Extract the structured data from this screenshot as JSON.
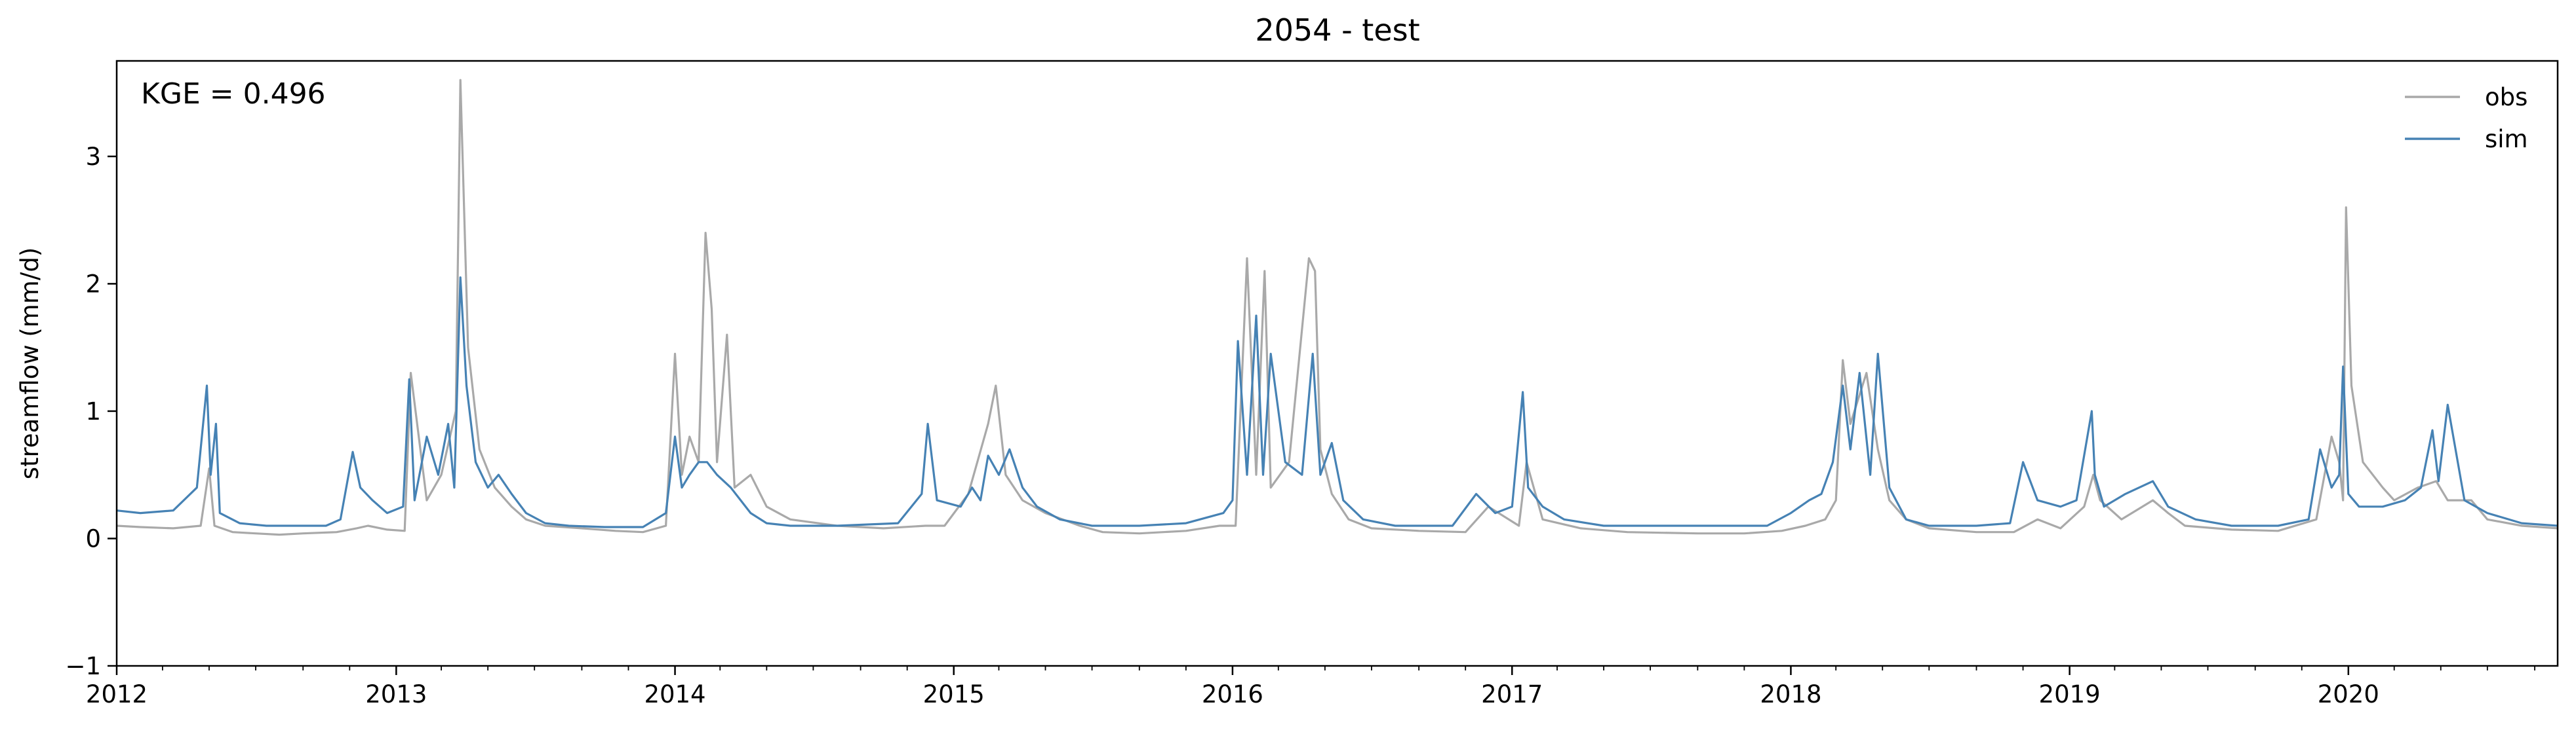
{
  "chart_data": {
    "type": "line",
    "title": "2054 - test",
    "xlabel": "",
    "ylabel": "streamflow (mm/d)",
    "annotation": "KGE = 0.496",
    "xlim": [
      "2012-01-01",
      "2020-10-01"
    ],
    "ylim": [
      -1,
      3.75
    ],
    "x_ticks": [
      "2012",
      "2013",
      "2014",
      "2015",
      "2016",
      "2017",
      "2018",
      "2019",
      "2020"
    ],
    "y_ticks": [
      "−1",
      "0",
      "1",
      "2",
      "3"
    ],
    "grid": false,
    "legend_position": "top-right",
    "series": [
      {
        "name": "obs",
        "color": "#a9a9a9",
        "x": [
          "2012-01-01",
          "2012-02-01",
          "2012-03-15",
          "2012-04-20",
          "2012-05-01",
          "2012-05-08",
          "2012-06-01",
          "2012-07-01",
          "2012-08-01",
          "2012-09-01",
          "2012-10-15",
          "2012-11-10",
          "2012-11-25",
          "2012-12-20",
          "2013-01-12",
          "2013-01-20",
          "2013-02-10",
          "2013-03-01",
          "2013-03-20",
          "2013-03-26",
          "2013-04-05",
          "2013-04-20",
          "2013-05-10",
          "2013-06-01",
          "2013-06-20",
          "2013-07-15",
          "2013-09-01",
          "2013-10-15",
          "2013-11-20",
          "2013-12-20",
          "2014-01-01",
          "2014-01-10",
          "2014-01-20",
          "2014-02-01",
          "2014-02-10",
          "2014-02-18",
          "2014-02-25",
          "2014-03-10",
          "2014-03-20",
          "2014-04-10",
          "2014-05-01",
          "2014-06-01",
          "2014-08-01",
          "2014-10-01",
          "2014-11-25",
          "2014-12-20",
          "2015-01-20",
          "2015-02-15",
          "2015-02-25",
          "2015-03-10",
          "2015-04-01",
          "2015-05-01",
          "2015-06-15",
          "2015-07-15",
          "2015-09-01",
          "2015-11-01",
          "2015-12-15",
          "2016-01-05",
          "2016-01-20",
          "2016-02-01",
          "2016-02-12",
          "2016-02-20",
          "2016-03-15",
          "2016-04-10",
          "2016-04-18",
          "2016-04-25",
          "2016-05-10",
          "2016-06-01",
          "2016-07-01",
          "2016-09-01",
          "2016-11-01",
          "2016-12-01",
          "2017-01-10",
          "2017-01-20",
          "2017-02-10",
          "2017-04-01",
          "2017-06-01",
          "2017-09-01",
          "2017-11-01",
          "2017-12-20",
          "2018-01-20",
          "2018-02-15",
          "2018-03-01",
          "2018-03-10",
          "2018-03-20",
          "2018-04-10",
          "2018-04-25",
          "2018-05-10",
          "2018-06-01",
          "2018-07-01",
          "2018-09-01",
          "2018-10-20",
          "2018-11-20",
          "2018-12-20",
          "2019-01-20",
          "2019-02-01",
          "2019-02-10",
          "2019-03-10",
          "2019-04-20",
          "2019-05-10",
          "2019-06-01",
          "2019-08-01",
          "2019-10-01",
          "2019-11-20",
          "2019-12-10",
          "2019-12-20",
          "2019-12-25",
          "2019-12-29",
          "2020-01-05",
          "2020-01-20",
          "2020-02-15",
          "2020-03-01",
          "2020-04-01",
          "2020-04-25",
          "2020-05-10",
          "2020-06-10",
          "2020-07-01",
          "2020-08-15",
          "2020-10-01"
        ],
        "y": [
          0.1,
          0.09,
          0.08,
          0.1,
          0.55,
          0.1,
          0.05,
          0.04,
          0.03,
          0.04,
          0.05,
          0.08,
          0.1,
          0.07,
          0.06,
          1.3,
          0.3,
          0.5,
          1.0,
          3.6,
          1.5,
          0.7,
          0.4,
          0.25,
          0.15,
          0.1,
          0.08,
          0.06,
          0.05,
          0.1,
          1.45,
          0.5,
          0.8,
          0.6,
          2.4,
          1.8,
          0.6,
          1.6,
          0.4,
          0.5,
          0.25,
          0.15,
          0.1,
          0.08,
          0.1,
          0.1,
          0.35,
          0.9,
          1.2,
          0.5,
          0.3,
          0.2,
          0.1,
          0.05,
          0.04,
          0.06,
          0.1,
          0.1,
          2.2,
          0.5,
          2.1,
          0.4,
          0.6,
          2.2,
          2.1,
          0.7,
          0.35,
          0.15,
          0.08,
          0.06,
          0.05,
          0.25,
          0.1,
          0.6,
          0.15,
          0.08,
          0.05,
          0.04,
          0.04,
          0.06,
          0.1,
          0.15,
          0.3,
          1.4,
          0.9,
          1.3,
          0.7,
          0.3,
          0.15,
          0.08,
          0.05,
          0.05,
          0.15,
          0.08,
          0.25,
          0.5,
          0.3,
          0.15,
          0.3,
          0.2,
          0.1,
          0.07,
          0.06,
          0.15,
          0.8,
          0.6,
          0.3,
          2.6,
          1.2,
          0.6,
          0.4,
          0.3,
          0.4,
          0.45,
          0.3,
          0.3,
          0.15,
          0.1,
          0.08
        ]
      },
      {
        "name": "sim",
        "color": "#4682b4",
        "x": [
          "2012-01-01",
          "2012-02-01",
          "2012-03-15",
          "2012-04-15",
          "2012-04-28",
          "2012-05-03",
          "2012-05-10",
          "2012-05-15",
          "2012-06-10",
          "2012-07-15",
          "2012-08-20",
          "2012-10-01",
          "2012-10-20",
          "2012-11-05",
          "2012-11-15",
          "2012-12-01",
          "2012-12-20",
          "2013-01-10",
          "2013-01-18",
          "2013-01-25",
          "2013-02-10",
          "2013-02-25",
          "2013-03-10",
          "2013-03-18",
          "2013-03-26",
          "2013-04-03",
          "2013-04-15",
          "2013-05-01",
          "2013-05-15",
          "2013-06-01",
          "2013-06-20",
          "2013-07-15",
          "2013-08-15",
          "2013-10-01",
          "2013-11-20",
          "2013-12-20",
          "2014-01-01",
          "2014-01-10",
          "2014-01-20",
          "2014-02-01",
          "2014-02-12",
          "2014-02-25",
          "2014-03-15",
          "2014-04-10",
          "2014-05-01",
          "2014-06-01",
          "2014-08-01",
          "2014-10-20",
          "2014-11-20",
          "2014-11-28",
          "2014-12-10",
          "2015-01-10",
          "2015-01-25",
          "2015-02-05",
          "2015-02-15",
          "2015-03-01",
          "2015-03-15",
          "2015-04-01",
          "2015-04-20",
          "2015-05-20",
          "2015-07-01",
          "2015-09-01",
          "2015-11-01",
          "2015-12-20",
          "2016-01-01",
          "2016-01-08",
          "2016-01-20",
          "2016-02-01",
          "2016-02-10",
          "2016-02-20",
          "2016-03-10",
          "2016-04-01",
          "2016-04-15",
          "2016-04-25",
          "2016-05-10",
          "2016-05-25",
          "2016-06-20",
          "2016-08-01",
          "2016-10-15",
          "2016-11-15",
          "2016-12-10",
          "2017-01-01",
          "2017-01-15",
          "2017-01-22",
          "2017-02-10",
          "2017-03-10",
          "2017-05-01",
          "2017-07-01",
          "2017-09-01",
          "2017-10-20",
          "2017-12-01",
          "2018-01-01",
          "2018-01-25",
          "2018-02-10",
          "2018-02-25",
          "2018-03-10",
          "2018-03-20",
          "2018-04-01",
          "2018-04-15",
          "2018-04-25",
          "2018-05-10",
          "2018-06-01",
          "2018-07-01",
          "2018-09-01",
          "2018-10-15",
          "2018-11-01",
          "2018-11-20",
          "2018-12-20",
          "2019-01-10",
          "2019-01-30",
          "2019-02-03",
          "2019-02-15",
          "2019-03-15",
          "2019-04-20",
          "2019-05-10",
          "2019-06-15",
          "2019-08-01",
          "2019-10-01",
          "2019-11-10",
          "2019-11-25",
          "2019-12-10",
          "2019-12-20",
          "2019-12-25",
          "2020-01-01",
          "2020-01-15",
          "2020-02-15",
          "2020-03-15",
          "2020-04-05",
          "2020-04-20",
          "2020-04-28",
          "2020-05-10",
          "2020-06-01",
          "2020-07-01",
          "2020-08-15",
          "2020-10-01"
        ],
        "y": [
          0.22,
          0.2,
          0.22,
          0.4,
          1.2,
          0.5,
          0.9,
          0.2,
          0.12,
          0.1,
          0.1,
          0.1,
          0.15,
          0.68,
          0.4,
          0.3,
          0.2,
          0.25,
          1.25,
          0.3,
          0.8,
          0.5,
          0.9,
          0.4,
          2.05,
          1.2,
          0.6,
          0.4,
          0.5,
          0.35,
          0.2,
          0.12,
          0.1,
          0.09,
          0.09,
          0.2,
          0.8,
          0.4,
          0.5,
          0.6,
          0.6,
          0.5,
          0.4,
          0.2,
          0.12,
          0.1,
          0.1,
          0.12,
          0.35,
          0.9,
          0.3,
          0.25,
          0.4,
          0.3,
          0.65,
          0.5,
          0.7,
          0.4,
          0.25,
          0.15,
          0.1,
          0.1,
          0.12,
          0.2,
          0.3,
          1.55,
          0.5,
          1.75,
          0.5,
          1.45,
          0.6,
          0.5,
          1.45,
          0.5,
          0.75,
          0.3,
          0.15,
          0.1,
          0.1,
          0.35,
          0.2,
          0.25,
          1.15,
          0.4,
          0.25,
          0.15,
          0.1,
          0.1,
          0.1,
          0.1,
          0.1,
          0.2,
          0.3,
          0.35,
          0.6,
          1.2,
          0.7,
          1.3,
          0.5,
          1.45,
          0.4,
          0.15,
          0.1,
          0.1,
          0.12,
          0.6,
          0.3,
          0.25,
          0.3,
          1.0,
          0.5,
          0.25,
          0.35,
          0.45,
          0.25,
          0.15,
          0.1,
          0.1,
          0.15,
          0.7,
          0.4,
          0.5,
          1.35,
          0.35,
          0.25,
          0.25,
          0.3,
          0.4,
          0.85,
          0.45,
          1.05,
          0.3,
          0.2,
          0.12,
          0.1
        ]
      }
    ]
  }
}
